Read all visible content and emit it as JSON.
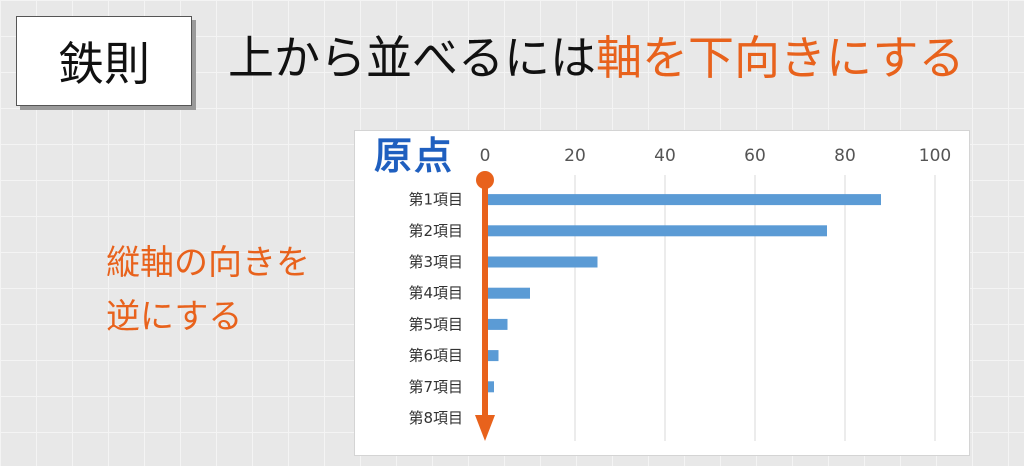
{
  "rule_box": {
    "label": "鉄則"
  },
  "headline": {
    "normal": "上から並べるには",
    "accent": "軸を下向きにする"
  },
  "side_note": {
    "line1": "縦軸の向きを",
    "line2": "逆にする"
  },
  "origin_label": "原点",
  "colors": {
    "accent": "#e8621c",
    "bar": "#5b9bd5",
    "origin_text": "#1f5fbf"
  },
  "chart_data": {
    "type": "bar",
    "orientation": "horizontal",
    "categories": [
      "第1項目",
      "第2項目",
      "第3項目",
      "第4項目",
      "第5項目",
      "第6項目",
      "第7項目",
      "第8項目"
    ],
    "values": [
      88,
      76,
      25,
      10,
      5,
      3,
      2,
      0
    ],
    "xlim": [
      0,
      100
    ],
    "xticks": [
      0,
      20,
      40,
      60,
      80,
      100
    ],
    "x_axis_position": "top",
    "category_order": "reversed",
    "grid": true
  }
}
